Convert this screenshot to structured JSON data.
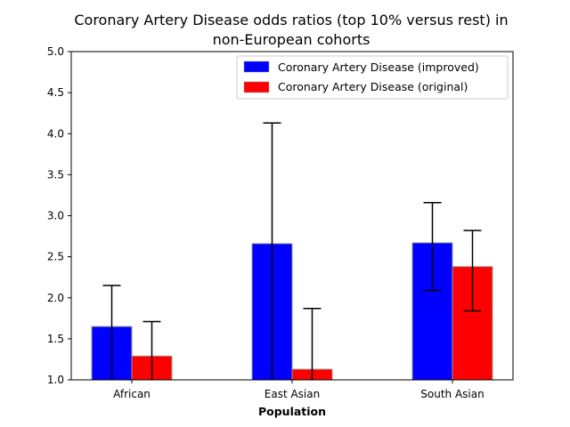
{
  "chart_data": {
    "type": "bar",
    "title_lines": [
      "Coronary Artery Disease odds ratios (top 10% versus rest) in",
      "non-European cohorts"
    ],
    "xlabel": "Population",
    "ylabel": "",
    "categories": [
      "African",
      "East Asian",
      "South Asian"
    ],
    "ylim": [
      1.0,
      5.0
    ],
    "yticks": [
      "1.0",
      "1.5",
      "2.0",
      "2.5",
      "3.0",
      "3.5",
      "4.0",
      "4.5",
      "5.0"
    ],
    "grid": false,
    "legend_position": "top-right",
    "series": [
      {
        "name": "Coronary Artery Disease (improved)",
        "color": "#0000ff",
        "values": [
          1.65,
          2.66,
          2.67
        ],
        "error_low": [
          1.0,
          1.0,
          2.09
        ],
        "error_high": [
          2.15,
          4.13,
          3.16
        ]
      },
      {
        "name": "Coronary Artery Disease (original)",
        "color": "#ff0000",
        "values": [
          1.29,
          1.13,
          2.38
        ],
        "error_low": [
          1.0,
          1.0,
          1.84
        ],
        "error_high": [
          1.71,
          1.87,
          2.82
        ]
      }
    ]
  }
}
